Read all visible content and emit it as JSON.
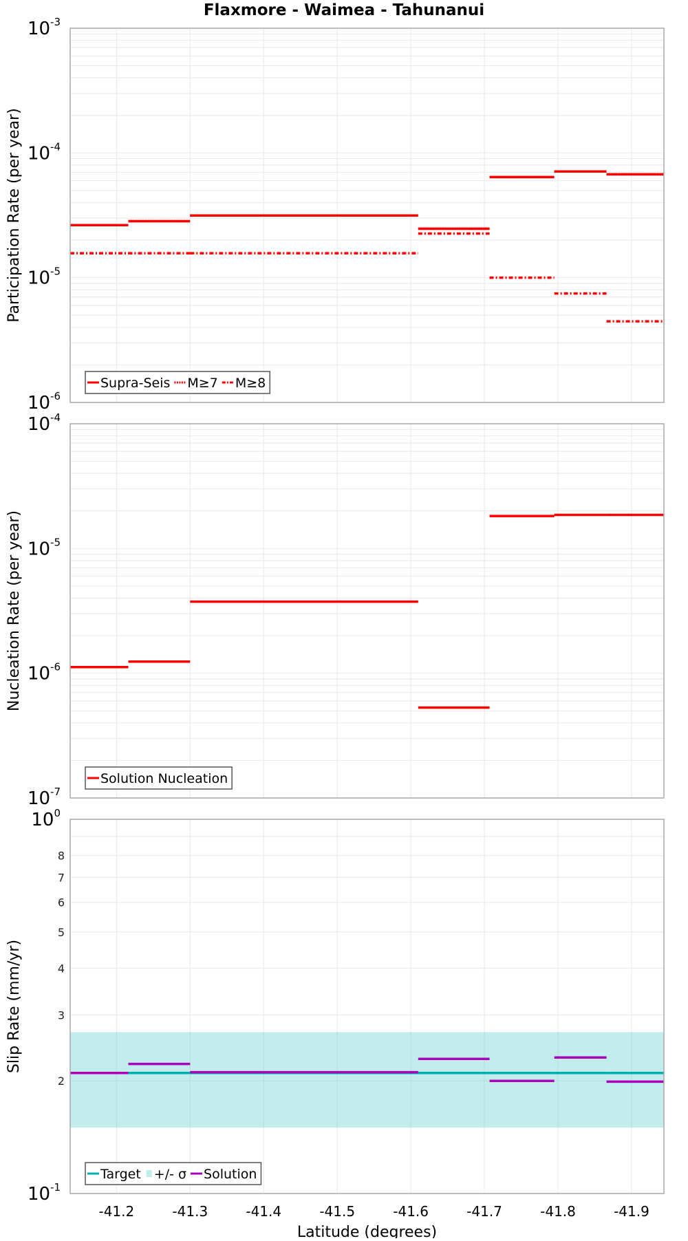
{
  "chart_data": {
    "title": "Flaxmore - Waimea - Tahunanui",
    "shared_x": {
      "label": "Latitude (degrees)",
      "range": [
        -41.137,
        -41.944
      ],
      "ticks": [
        -41.2,
        -41.3,
        -41.4,
        -41.5,
        -41.6,
        -41.7,
        -41.8,
        -41.9
      ],
      "tick_labels": [
        "-41.2",
        "-41.3",
        "-41.4",
        "-41.5",
        "-41.6",
        "-41.7",
        "-41.8",
        "-41.9"
      ],
      "segment_boundaries": [
        -41.137,
        -41.216,
        -41.3,
        -41.61,
        -41.707,
        -41.795,
        -41.866,
        -41.944
      ],
      "grid": true
    },
    "panels": [
      {
        "type": "line",
        "subtype": "step-segments",
        "ylabel": "Participation Rate (per year)",
        "yscale": "log",
        "ylim": [
          1e-06,
          0.001
        ],
        "ytick_labels": [
          {
            "base": "10",
            "exp": "-3",
            "value": 0.001
          },
          {
            "base": "10",
            "exp": "-4",
            "value": 0.0001
          },
          {
            "base": "10",
            "exp": "-5",
            "value": 1e-05
          },
          {
            "base": "10",
            "exp": "-6",
            "value": 1e-06
          }
        ],
        "grid": true,
        "legend_position": "lower left",
        "series": [
          {
            "name": "Supra-Seis",
            "style": "solid",
            "color": "#ff0000",
            "values": [
              2.64e-05,
              2.84e-05,
              3.15e-05,
              2.47e-05,
              6.41e-05,
              7.1e-05,
              6.74e-05
            ]
          },
          {
            "name": "M≥7",
            "style": "dotted",
            "color": "#ff0000",
            "values": [
              2.64e-05,
              2.84e-05,
              3.15e-05,
              2.47e-05,
              6.41e-05,
              7.1e-05,
              6.74e-05
            ]
          },
          {
            "name": "M≥8",
            "style": "dashdot",
            "color": "#ff0000",
            "values": [
              1.57e-05,
              1.57e-05,
              1.57e-05,
              2.26e-05,
              1e-05,
              7.47e-06,
              4.47e-06
            ]
          }
        ]
      },
      {
        "type": "line",
        "subtype": "step-segments",
        "ylabel": "Nucleation Rate (per year)",
        "yscale": "log",
        "ylim": [
          1e-07,
          0.0001
        ],
        "ytick_labels": [
          {
            "base": "10",
            "exp": "-4",
            "value": 0.0001
          },
          {
            "base": "10",
            "exp": "-5",
            "value": 1e-05
          },
          {
            "base": "10",
            "exp": "-6",
            "value": 1e-06
          },
          {
            "base": "10",
            "exp": "-7",
            "value": 1e-07
          }
        ],
        "grid": true,
        "legend_position": "lower left",
        "series": [
          {
            "name": "Solution Nucleation",
            "style": "solid",
            "color": "#ff0000",
            "values": [
              1.12e-06,
              1.24e-06,
              3.75e-06,
              5.3e-07,
              1.82e-05,
              1.86e-05,
              1.86e-05
            ]
          }
        ]
      },
      {
        "type": "line",
        "subtype": "step-segments",
        "ylabel": "Slip Rate (mm/yr)",
        "yscale": "log",
        "ylim": [
          0.1,
          1.0
        ],
        "ytick_labels": [
          {
            "base": "10",
            "exp": "0",
            "value": 1.0
          },
          {
            "base": "10",
            "exp": "-1",
            "value": 0.1
          }
        ],
        "minor_tick_labels": [
          {
            "label": "8",
            "value": 0.8
          },
          {
            "label": "7",
            "value": 0.7
          },
          {
            "label": "6",
            "value": 0.6
          },
          {
            "label": "5",
            "value": 0.5
          },
          {
            "label": "4",
            "value": 0.4
          },
          {
            "label": "3",
            "value": 0.3
          },
          {
            "label": "2",
            "value": 0.2
          }
        ],
        "grid": true,
        "legend_position": "lower left",
        "band": {
          "name": "+/- σ",
          "color": "#c3ecec",
          "low": 0.15,
          "high": 0.27
        },
        "series": [
          {
            "name": "Target",
            "style": "solid",
            "color": "#00b0b0",
            "values": [
              0.21,
              0.21,
              0.21,
              0.21,
              0.21,
              0.21,
              0.21
            ]
          },
          {
            "name": "Solution",
            "style": "solid",
            "color": "#aa00bb",
            "values": [
              0.21,
              0.222,
              0.211,
              0.229,
              0.2,
              0.231,
              0.199
            ]
          }
        ]
      }
    ]
  },
  "legends": {
    "panel1": [
      "Supra-Seis",
      "M≥7",
      "M≥8"
    ],
    "panel2": [
      "Solution Nucleation"
    ],
    "panel3": [
      "Target",
      "+/- σ",
      "Solution"
    ]
  }
}
